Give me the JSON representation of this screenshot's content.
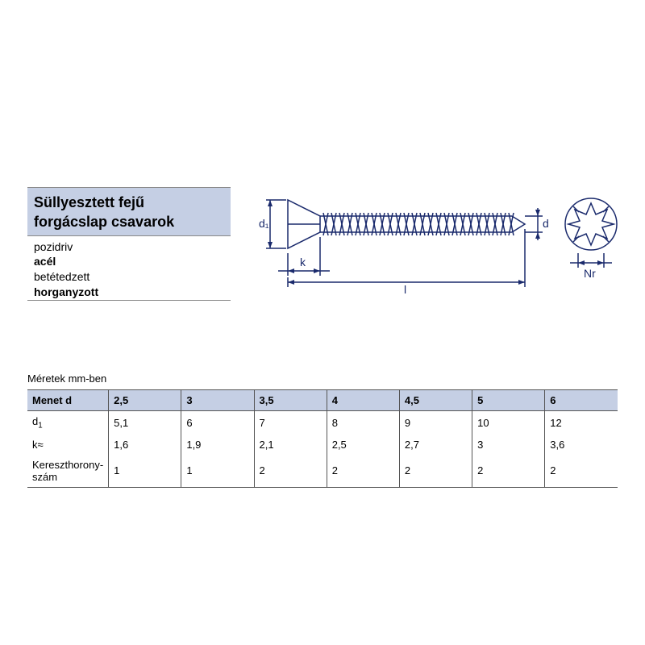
{
  "header": {
    "title_line1": "Süllyesztett fejű",
    "title_line2": "forgácslap csavarok",
    "specs": [
      {
        "text": "pozidriv",
        "bold": false
      },
      {
        "text": "acél",
        "bold": true
      },
      {
        "text": "betétedzett",
        "bold": false
      },
      {
        "text": "horganyzott",
        "bold": true
      }
    ]
  },
  "diagram": {
    "stroke": "#1a2a6c",
    "labels": {
      "d1": "d₁",
      "d": "d",
      "k": "k",
      "l": "l",
      "Nr": "Nr"
    }
  },
  "table": {
    "caption": "Méretek mm-ben",
    "header_label": "Menet d",
    "columns": [
      "2,5",
      "3",
      "3,5",
      "4",
      "4,5",
      "5",
      "6"
    ],
    "rows": [
      {
        "label": "d₁",
        "values": [
          "5,1",
          "6",
          "7",
          "8",
          "9",
          "10",
          "12"
        ]
      },
      {
        "label": "k≈",
        "values": [
          "1,6",
          "1,9",
          "2,1",
          "2,5",
          "2,7",
          "3",
          "3,6"
        ]
      },
      {
        "label": "Kereszthorony-szám",
        "values": [
          "1",
          "1",
          "2",
          "2",
          "2",
          "2",
          "2"
        ]
      }
    ],
    "col_width_pct": 12.4,
    "colors": {
      "header_bg": "#c5cfe4",
      "border": "#555555",
      "text": "#000000"
    }
  }
}
